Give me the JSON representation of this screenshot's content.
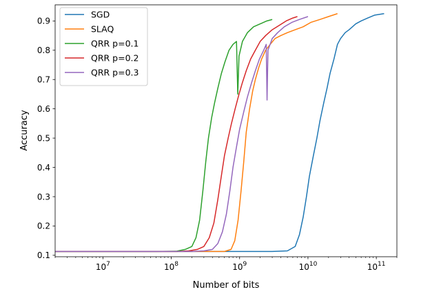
{
  "chart_data": {
    "type": "line",
    "xscale": "log",
    "xlim": [
      2000000,
      200000000000
    ],
    "ylim": [
      0.095,
      0.955
    ],
    "xlabel": "Number of bits",
    "ylabel": "Accuracy",
    "title": "",
    "grid": false,
    "legend_position": "top-left",
    "x_ticks": [
      {
        "value": 10000000,
        "mantissa": "10",
        "exp": "7"
      },
      {
        "value": 100000000,
        "mantissa": "10",
        "exp": "8"
      },
      {
        "value": 1000000000,
        "mantissa": "10",
        "exp": "9"
      },
      {
        "value": 10000000000,
        "mantissa": "10",
        "exp": "10"
      },
      {
        "value": 100000000000,
        "mantissa": "10",
        "exp": "11"
      }
    ],
    "y_ticks": [
      {
        "value": 0.1,
        "label": "0.1"
      },
      {
        "value": 0.2,
        "label": "0.2"
      },
      {
        "value": 0.3,
        "label": "0.3"
      },
      {
        "value": 0.4,
        "label": "0.4"
      },
      {
        "value": 0.5,
        "label": "0.5"
      },
      {
        "value": 0.6,
        "label": "0.6"
      },
      {
        "value": 0.7,
        "label": "0.7"
      },
      {
        "value": 0.8,
        "label": "0.8"
      },
      {
        "value": 0.9,
        "label": "0.9"
      }
    ],
    "series": [
      {
        "name": "SGD",
        "color": "#1f77b4",
        "points": [
          [
            2000000,
            0.113
          ],
          [
            1000000000,
            0.113
          ],
          [
            3000000000,
            0.113
          ],
          [
            5000000000,
            0.115
          ],
          [
            6500000000,
            0.13
          ],
          [
            7500000000,
            0.17
          ],
          [
            8500000000,
            0.23
          ],
          [
            9500000000,
            0.3
          ],
          [
            10500000000,
            0.37
          ],
          [
            12000000000,
            0.44
          ],
          [
            13500000000,
            0.5
          ],
          [
            15000000000,
            0.56
          ],
          [
            17000000000,
            0.62
          ],
          [
            19000000000,
            0.67
          ],
          [
            21000000000,
            0.72
          ],
          [
            24000000000,
            0.77
          ],
          [
            27000000000,
            0.82
          ],
          [
            30000000000,
            0.84
          ],
          [
            35000000000,
            0.86
          ],
          [
            40000000000,
            0.87
          ],
          [
            50000000000,
            0.89
          ],
          [
            60000000000,
            0.9
          ],
          [
            75000000000,
            0.91
          ],
          [
            95000000000,
            0.92
          ],
          [
            130000000000,
            0.925
          ]
        ]
      },
      {
        "name": "SLAQ",
        "color": "#ff7f0e",
        "points": [
          [
            2000000,
            0.113
          ],
          [
            300000000,
            0.113
          ],
          [
            600000000,
            0.113
          ],
          [
            750000000,
            0.12
          ],
          [
            850000000,
            0.15
          ],
          [
            950000000,
            0.22
          ],
          [
            1050000000,
            0.32
          ],
          [
            1150000000,
            0.42
          ],
          [
            1250000000,
            0.52
          ],
          [
            1400000000,
            0.6
          ],
          [
            1550000000,
            0.66
          ],
          [
            1700000000,
            0.7
          ],
          [
            1900000000,
            0.74
          ],
          [
            2100000000,
            0.77
          ],
          [
            2400000000,
            0.8
          ],
          [
            2800000000,
            0.82
          ],
          [
            3300000000,
            0.84
          ],
          [
            4000000000,
            0.85
          ],
          [
            5000000000,
            0.86
          ],
          [
            6500000000,
            0.87
          ],
          [
            8500000000,
            0.88
          ],
          [
            11000000000,
            0.895
          ],
          [
            15000000000,
            0.905
          ],
          [
            20000000000,
            0.915
          ],
          [
            27000000000,
            0.925
          ]
        ]
      },
      {
        "name": "QRR p=0.1",
        "color": "#2ca02c",
        "points": [
          [
            2000000,
            0.113
          ],
          [
            60000000,
            0.113
          ],
          [
            120000000,
            0.114
          ],
          [
            160000000,
            0.12
          ],
          [
            200000000,
            0.13
          ],
          [
            230000000,
            0.16
          ],
          [
            260000000,
            0.22
          ],
          [
            290000000,
            0.32
          ],
          [
            320000000,
            0.42
          ],
          [
            350000000,
            0.5
          ],
          [
            390000000,
            0.57
          ],
          [
            430000000,
            0.62
          ],
          [
            480000000,
            0.67
          ],
          [
            540000000,
            0.72
          ],
          [
            610000000,
            0.76
          ],
          [
            700000000,
            0.8
          ],
          [
            800000000,
            0.82
          ],
          [
            900000000,
            0.83
          ],
          [
            940000000,
            0.65
          ],
          [
            980000000,
            0.78
          ],
          [
            1100000000,
            0.83
          ],
          [
            1300000000,
            0.86
          ],
          [
            1600000000,
            0.88
          ],
          [
            2000000000,
            0.89
          ],
          [
            2500000000,
            0.9
          ],
          [
            3000000000,
            0.905
          ]
        ]
      },
      {
        "name": "QRR p=0.2",
        "color": "#d62728",
        "points": [
          [
            2000000,
            0.113
          ],
          [
            120000000,
            0.113
          ],
          [
            180000000,
            0.115
          ],
          [
            240000000,
            0.12
          ],
          [
            300000000,
            0.13
          ],
          [
            360000000,
            0.16
          ],
          [
            420000000,
            0.21
          ],
          [
            480000000,
            0.29
          ],
          [
            540000000,
            0.37
          ],
          [
            600000000,
            0.44
          ],
          [
            680000000,
            0.5
          ],
          [
            760000000,
            0.55
          ],
          [
            860000000,
            0.6
          ],
          [
            980000000,
            0.65
          ],
          [
            1100000000,
            0.69
          ],
          [
            1250000000,
            0.73
          ],
          [
            1450000000,
            0.77
          ],
          [
            1700000000,
            0.8
          ],
          [
            2000000000,
            0.83
          ],
          [
            2400000000,
            0.85
          ],
          [
            3000000000,
            0.87
          ],
          [
            3800000000,
            0.885
          ],
          [
            4800000000,
            0.9
          ],
          [
            6000000000,
            0.91
          ],
          [
            7000000000,
            0.915
          ]
        ]
      },
      {
        "name": "QRR p=0.3",
        "color": "#9467bd",
        "points": [
          [
            2000000,
            0.113
          ],
          [
            200000000,
            0.113
          ],
          [
            300000000,
            0.115
          ],
          [
            400000000,
            0.12
          ],
          [
            480000000,
            0.14
          ],
          [
            560000000,
            0.18
          ],
          [
            640000000,
            0.24
          ],
          [
            720000000,
            0.32
          ],
          [
            800000000,
            0.4
          ],
          [
            900000000,
            0.47
          ],
          [
            1000000000,
            0.53
          ],
          [
            1150000000,
            0.59
          ],
          [
            1300000000,
            0.64
          ],
          [
            1500000000,
            0.69
          ],
          [
            1700000000,
            0.73
          ],
          [
            1950000000,
            0.77
          ],
          [
            2250000000,
            0.8
          ],
          [
            2450000000,
            0.82
          ],
          [
            2520000000,
            0.63
          ],
          [
            2600000000,
            0.8
          ],
          [
            3000000000,
            0.84
          ],
          [
            3600000000,
            0.86
          ],
          [
            4500000000,
            0.88
          ],
          [
            5800000000,
            0.895
          ],
          [
            7500000000,
            0.905
          ],
          [
            10000000000,
            0.915
          ]
        ]
      }
    ]
  }
}
